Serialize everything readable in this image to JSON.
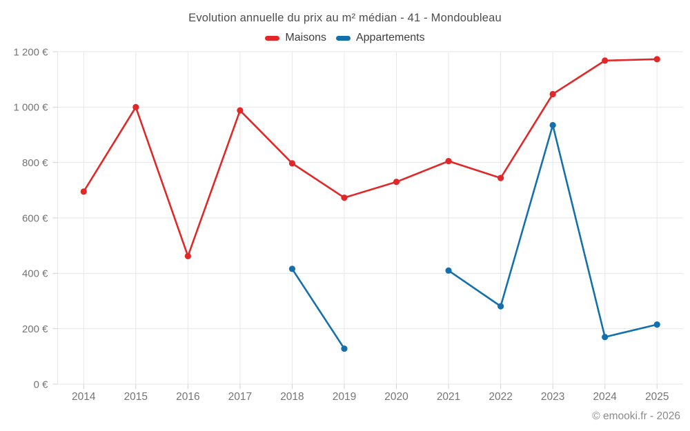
{
  "title": "Evolution annuelle du prix au m² médian - 41 - Mondoubleau",
  "legend": [
    {
      "label": "Maisons",
      "color": "#e12727"
    },
    {
      "label": "Appartements",
      "color": "#1470ad"
    }
  ],
  "footer": "© emooki.fr - 2026",
  "chart_data": {
    "type": "line",
    "title": "Evolution annuelle du prix au m² médian - 41 - Mondoubleau",
    "categories": [
      "2014",
      "2015",
      "2016",
      "2017",
      "2018",
      "2019",
      "2020",
      "2021",
      "2022",
      "2023",
      "2024",
      "2025"
    ],
    "series": [
      {
        "name": "Maisons",
        "color": "#e12727",
        "values": [
          695,
          1000,
          462,
          988,
          797,
          673,
          730,
          805,
          744,
          1047,
          1168,
          1173
        ]
      },
      {
        "name": "Appartements",
        "color": "#1470ad",
        "values": [
          null,
          null,
          null,
          null,
          416,
          128,
          null,
          410,
          281,
          935,
          170,
          215
        ]
      }
    ],
    "xlabel": "",
    "ylabel": "",
    "ylim": [
      0,
      1200
    ],
    "yticks": [
      {
        "v": 0,
        "label": "0 €"
      },
      {
        "v": 200,
        "label": "200 €"
      },
      {
        "v": 400,
        "label": "400 €"
      },
      {
        "v": 600,
        "label": "600 €"
      },
      {
        "v": 800,
        "label": "800 €"
      },
      {
        "v": 1000,
        "label": "1 000 €"
      },
      {
        "v": 1200,
        "label": "1 200 €"
      }
    ],
    "grid": true,
    "legend_position": "top"
  }
}
